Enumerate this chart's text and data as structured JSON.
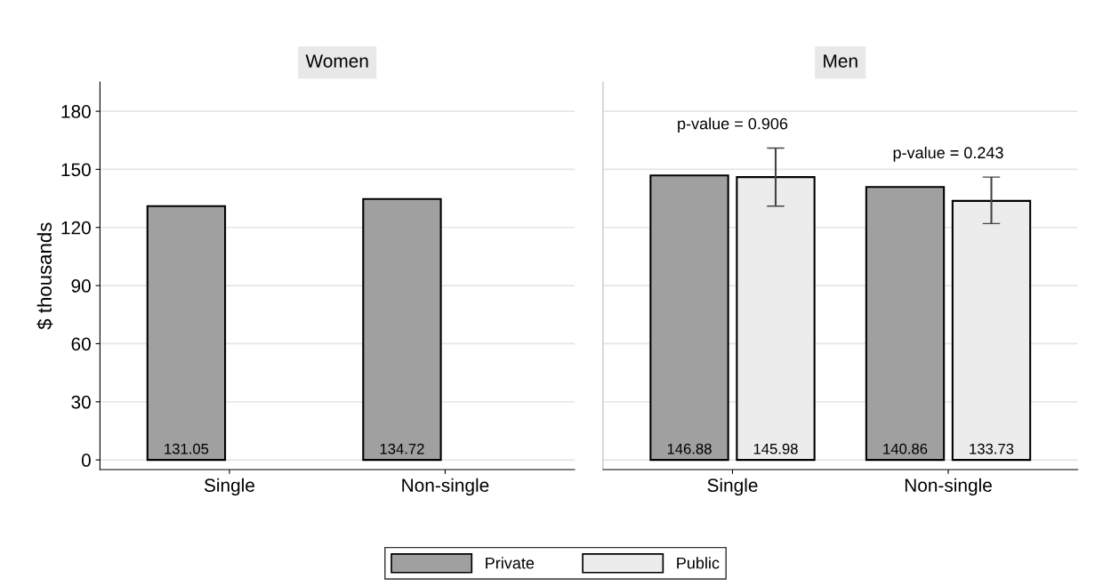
{
  "chart_data": [
    {
      "type": "bar",
      "title": "Women",
      "ylabel": "$ thousands",
      "categories": [
        "Single",
        "Non-single"
      ],
      "ylim": [
        -5,
        195
      ],
      "yticks": [
        0,
        30,
        60,
        90,
        120,
        150,
        180
      ],
      "grid": "y",
      "legend": "bottom",
      "data_labels": true,
      "series": [
        {
          "name": "Private",
          "color": "#a0a0a0",
          "values": [
            131.05,
            134.72
          ]
        },
        {
          "name": "Public",
          "color": "#ececec",
          "values": [
            null,
            null
          ]
        }
      ]
    },
    {
      "type": "bar",
      "title": "Men",
      "categories": [
        "Single",
        "Non-single"
      ],
      "ylim": [
        -5,
        195
      ],
      "yticks": [
        0,
        30,
        60,
        90,
        120,
        150,
        180
      ],
      "grid": "y",
      "data_labels": true,
      "tick_labels": "x",
      "series": [
        {
          "color": "#a0a0a0",
          "values": [
            146.88,
            140.86
          ]
        },
        {
          "color": "#ececec",
          "values": [
            145.98,
            133.73
          ],
          "errors": [
            [
              131,
              161
            ],
            [
              122,
              146
            ]
          ]
        }
      ],
      "annotations": [
        "p-value = 0.906",
        "p-value = 0.243"
      ]
    }
  ]
}
